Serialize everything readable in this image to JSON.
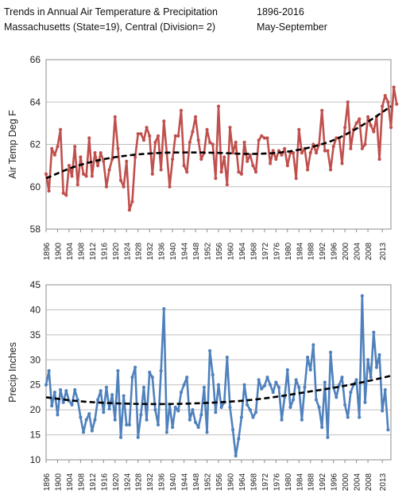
{
  "header": {
    "title": "Trends in Annual Air Temperature & Precipitation",
    "years": "1896-2016",
    "location": "Massachusetts (State=19),   Central (Division= 2)",
    "season": "May-September"
  },
  "chart_data": [
    {
      "type": "line",
      "ylabel": "Air Temp Deg F",
      "ylim": [
        58,
        66
      ],
      "yticks": [
        58,
        60,
        62,
        64,
        66
      ],
      "xlim": [
        1896,
        2016
      ],
      "xticks": [
        1896,
        1900,
        1904,
        1908,
        1912,
        1916,
        1920,
        1924,
        1928,
        1932,
        1936,
        1940,
        1944,
        1948,
        1952,
        1956,
        1960,
        1964,
        1968,
        1972,
        1976,
        1980,
        1984,
        1988,
        1992,
        1996,
        2000,
        2004,
        2008,
        2013
      ],
      "grid": "horizontal",
      "series": [
        {
          "color": "#c0504d",
          "style": "solid-with-markers",
          "x_start": 1896,
          "values": [
            60.6,
            59.8,
            61.8,
            61.5,
            61.9,
            62.7,
            59.7,
            59.6,
            61.0,
            60.5,
            61.9,
            60.1,
            61.4,
            60.6,
            60.5,
            62.3,
            60.5,
            61.6,
            61.0,
            61.6,
            61.2,
            60.0,
            60.8,
            61.3,
            63.3,
            61.8,
            60.3,
            60.0,
            61.2,
            58.9,
            59.3,
            61.4,
            62.5,
            62.5,
            62.2,
            62.8,
            62.4,
            60.6,
            62.1,
            62.4,
            60.8,
            63.1,
            61.6,
            60.0,
            61.3,
            62.4,
            62.4,
            63.6,
            61.0,
            60.7,
            62.1,
            62.6,
            63.3,
            62.2,
            61.3,
            61.6,
            62.7,
            62.1,
            62.0,
            60.4,
            63.8,
            60.7,
            61.4,
            60.1,
            62.8,
            61.6,
            62.1,
            60.7,
            60.6,
            62.1,
            61.2,
            61.5,
            61.0,
            60.7,
            62.2,
            62.4,
            62.3,
            62.3,
            61.1,
            61.7,
            61.3,
            61.7,
            61.5,
            61.8,
            61.0,
            61.6,
            61.6,
            60.4,
            62.7,
            61.6,
            61.8,
            60.8,
            61.6,
            62.0,
            61.6,
            62.0,
            63.6,
            61.7,
            61.7,
            60.8,
            61.9,
            62.3,
            62.3,
            61.1,
            62.8,
            64.0,
            61.8,
            62.7,
            63.0,
            63.2,
            61.8,
            62.0,
            63.3,
            62.9,
            62.6,
            63.3,
            61.3,
            63.8,
            64.3,
            64.0,
            62.8,
            64.7,
            63.9
          ]
        },
        {
          "color": "#000000",
          "style": "dashed-trend",
          "x": [
            1896,
            1906,
            1916,
            1926,
            1936,
            1946,
            1956,
            1966,
            1976,
            1986,
            1996,
            2006,
            2016
          ],
          "values": [
            60.4,
            60.95,
            61.3,
            61.5,
            61.6,
            61.62,
            61.6,
            61.55,
            61.6,
            61.8,
            62.2,
            62.9,
            63.8
          ]
        }
      ]
    },
    {
      "type": "line",
      "ylabel": "Precip Inches",
      "ylim": [
        10,
        45
      ],
      "yticks": [
        10,
        15,
        20,
        25,
        30,
        35,
        40,
        45
      ],
      "xlim": [
        1896,
        2016
      ],
      "xticks": [
        1896,
        1900,
        1904,
        1908,
        1912,
        1916,
        1920,
        1924,
        1928,
        1932,
        1936,
        1940,
        1944,
        1948,
        1952,
        1956,
        1960,
        1964,
        1968,
        1972,
        1976,
        1980,
        1984,
        1988,
        1992,
        1996,
        2000,
        2004,
        2008,
        2013
      ],
      "grid": "horizontal",
      "series": [
        {
          "color": "#4f81bd",
          "style": "solid-with-markers",
          "x_start": 1896,
          "values": [
            25.0,
            27.8,
            20.8,
            23.5,
            19.0,
            24.0,
            21.5,
            23.8,
            21.8,
            21.0,
            24.0,
            22.0,
            18.5,
            15.5,
            18.0,
            19.2,
            15.8,
            18.0,
            22.0,
            23.8,
            19.5,
            24.5,
            20.2,
            23.0,
            18.0,
            27.8,
            14.5,
            22.8,
            17.0,
            17.0,
            26.5,
            28.5,
            14.5,
            19.0,
            24.5,
            18.0,
            27.5,
            26.5,
            20.0,
            17.0,
            27.8,
            40.2,
            15.5,
            21.0,
            16.5,
            20.5,
            19.8,
            23.5,
            25.0,
            26.5,
            18.0,
            20.0,
            17.5,
            16.5,
            19.0,
            24.5,
            15.5,
            31.8,
            27.0,
            19.5,
            25.0,
            20.5,
            21.5,
            30.5,
            20.5,
            16.0,
            10.8,
            14.2,
            18.5,
            25.0,
            21.0,
            20.0,
            18.5,
            19.5,
            26.0,
            24.2,
            24.8,
            26.5,
            25.0,
            23.5,
            25.5,
            24.5,
            18.0,
            22.5,
            28.0,
            20.5,
            22.0,
            26.0,
            24.5,
            18.0,
            24.5,
            30.5,
            28.0,
            33.0,
            22.0,
            20.5,
            16.5,
            25.5,
            14.5,
            31.5,
            24.5,
            22.5,
            25.0,
            26.5,
            21.0,
            18.5,
            23.5,
            25.0,
            26.0,
            18.5,
            42.8,
            21.5,
            30.0,
            26.5,
            35.5,
            28.5,
            31.0,
            19.8,
            24.0,
            16.0
          ]
        },
        {
          "color": "#000000",
          "style": "dashed-trend",
          "x": [
            1896,
            1906,
            1916,
            1926,
            1936,
            1946,
            1956,
            1966,
            1976,
            1986,
            1996,
            2006,
            2016
          ],
          "values": [
            22.5,
            21.8,
            21.4,
            21.2,
            21.15,
            21.25,
            21.5,
            21.9,
            22.6,
            23.5,
            24.4,
            25.5,
            26.8
          ]
        }
      ]
    }
  ]
}
